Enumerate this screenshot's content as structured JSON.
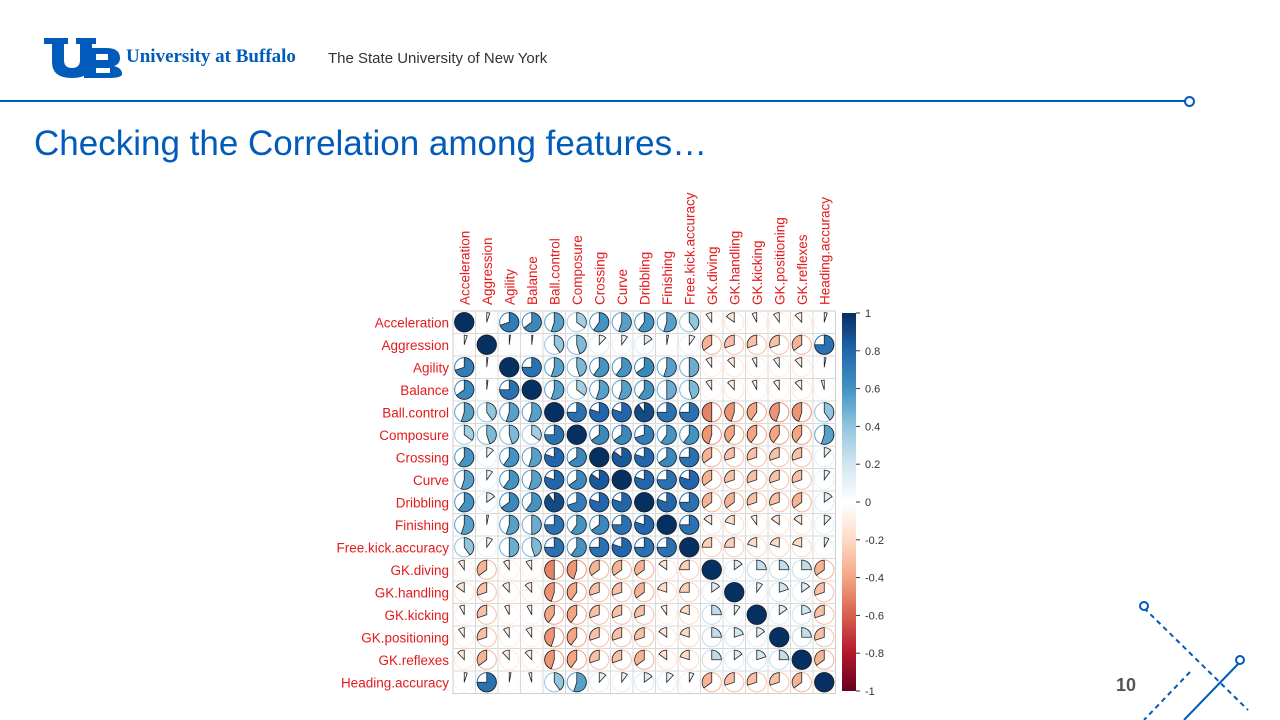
{
  "header": {
    "brand_name": "University at Buffalo",
    "brand_subtitle": "The State University of New York",
    "logo_text": "UB"
  },
  "slide": {
    "title": "Checking the Correlation among features…",
    "page_number": "10"
  },
  "colors": {
    "brand_blue": "#005bbb",
    "label_red": "#e41a1c",
    "positive": "#053061",
    "negative": "#67001f"
  },
  "chart_data": {
    "type": "heatmap",
    "style": "corrplot pie",
    "labels": [
      "Acceleration",
      "Aggression",
      "Agility",
      "Balance",
      "Ball.control",
      "Composure",
      "Crossing",
      "Curve",
      "Dribbling",
      "Finishing",
      "Free.kick.accuracy",
      "GK.diving",
      "GK.handling",
      "GK.kicking",
      "GK.positioning",
      "GK.reflexes",
      "Heading.accuracy"
    ],
    "matrix": [
      [
        1.0,
        0.05,
        0.7,
        0.65,
        0.55,
        0.35,
        0.6,
        0.55,
        0.6,
        0.55,
        0.4,
        -0.1,
        -0.15,
        -0.08,
        -0.1,
        -0.12,
        0.05
      ],
      [
        0.05,
        1.0,
        0.02,
        0.02,
        0.4,
        0.45,
        0.12,
        0.1,
        0.15,
        0.03,
        0.1,
        -0.35,
        -0.3,
        -0.3,
        -0.3,
        -0.35,
        0.75
      ],
      [
        0.7,
        0.02,
        1.0,
        0.75,
        0.55,
        0.45,
        0.6,
        0.6,
        0.65,
        0.55,
        0.5,
        -0.1,
        -0.12,
        -0.08,
        -0.1,
        -0.12,
        0.03
      ],
      [
        0.65,
        0.02,
        0.75,
        1.0,
        0.55,
        0.35,
        0.55,
        0.55,
        0.6,
        0.5,
        0.45,
        -0.1,
        -0.12,
        -0.08,
        -0.1,
        -0.12,
        -0.05
      ],
      [
        0.55,
        0.4,
        0.55,
        0.55,
        1.0,
        0.75,
        0.8,
        0.8,
        0.9,
        0.75,
        0.75,
        -0.5,
        -0.45,
        -0.4,
        -0.45,
        -0.45,
        0.4
      ],
      [
        0.35,
        0.45,
        0.45,
        0.35,
        0.75,
        1.0,
        0.65,
        0.65,
        0.7,
        0.6,
        0.6,
        -0.45,
        -0.4,
        -0.4,
        -0.4,
        -0.4,
        0.55
      ],
      [
        0.6,
        0.12,
        0.6,
        0.55,
        0.8,
        0.65,
        1.0,
        0.85,
        0.8,
        0.65,
        0.75,
        -0.35,
        -0.3,
        -0.3,
        -0.3,
        -0.3,
        0.12
      ],
      [
        0.55,
        0.1,
        0.6,
        0.55,
        0.8,
        0.65,
        0.85,
        1.0,
        0.8,
        0.75,
        0.8,
        -0.35,
        -0.3,
        -0.3,
        -0.3,
        -0.3,
        0.1
      ],
      [
        0.6,
        0.15,
        0.65,
        0.6,
        0.9,
        0.7,
        0.8,
        0.8,
        1.0,
        0.8,
        0.75,
        -0.35,
        -0.35,
        -0.3,
        -0.3,
        -0.35,
        0.15
      ],
      [
        0.55,
        0.03,
        0.55,
        0.5,
        0.75,
        0.6,
        0.65,
        0.75,
        0.8,
        1.0,
        0.75,
        -0.15,
        -0.2,
        -0.1,
        -0.15,
        -0.15,
        0.12
      ],
      [
        0.4,
        0.1,
        0.5,
        0.45,
        0.75,
        0.6,
        0.75,
        0.8,
        0.75,
        0.75,
        1.0,
        -0.25,
        -0.25,
        -0.2,
        -0.2,
        -0.2,
        0.08
      ],
      [
        -0.1,
        -0.35,
        -0.1,
        -0.1,
        -0.5,
        -0.45,
        -0.35,
        -0.35,
        -0.35,
        -0.15,
        -0.25,
        1.0,
        0.15,
        0.25,
        0.25,
        0.25,
        -0.35
      ],
      [
        -0.15,
        -0.3,
        -0.12,
        -0.12,
        -0.45,
        -0.4,
        -0.3,
        -0.3,
        -0.35,
        -0.2,
        -0.25,
        0.15,
        1.0,
        0.1,
        0.2,
        0.15,
        -0.3
      ],
      [
        -0.08,
        -0.3,
        -0.08,
        -0.08,
        -0.4,
        -0.4,
        -0.3,
        -0.3,
        -0.3,
        -0.1,
        -0.2,
        0.25,
        0.1,
        1.0,
        0.15,
        0.2,
        -0.3
      ],
      [
        -0.1,
        -0.3,
        -0.1,
        -0.1,
        -0.45,
        -0.4,
        -0.3,
        -0.3,
        -0.3,
        -0.15,
        -0.2,
        0.25,
        0.2,
        0.15,
        1.0,
        0.25,
        -0.3
      ],
      [
        -0.12,
        -0.35,
        -0.12,
        -0.12,
        -0.45,
        -0.4,
        -0.3,
        -0.3,
        -0.35,
        -0.15,
        -0.2,
        0.25,
        0.15,
        0.2,
        0.25,
        1.0,
        -0.35
      ],
      [
        0.05,
        0.75,
        0.03,
        -0.05,
        0.4,
        0.55,
        0.12,
        0.1,
        0.15,
        0.12,
        0.08,
        -0.35,
        -0.3,
        -0.3,
        -0.3,
        -0.35,
        1.0
      ]
    ],
    "colorbar": {
      "range": [
        -1,
        1
      ],
      "ticks": [
        "1",
        "0.8",
        "0.6",
        "0.4",
        "0.2",
        "0",
        "-0.2",
        "-0.4",
        "-0.6",
        "-0.8",
        "-1"
      ]
    }
  }
}
